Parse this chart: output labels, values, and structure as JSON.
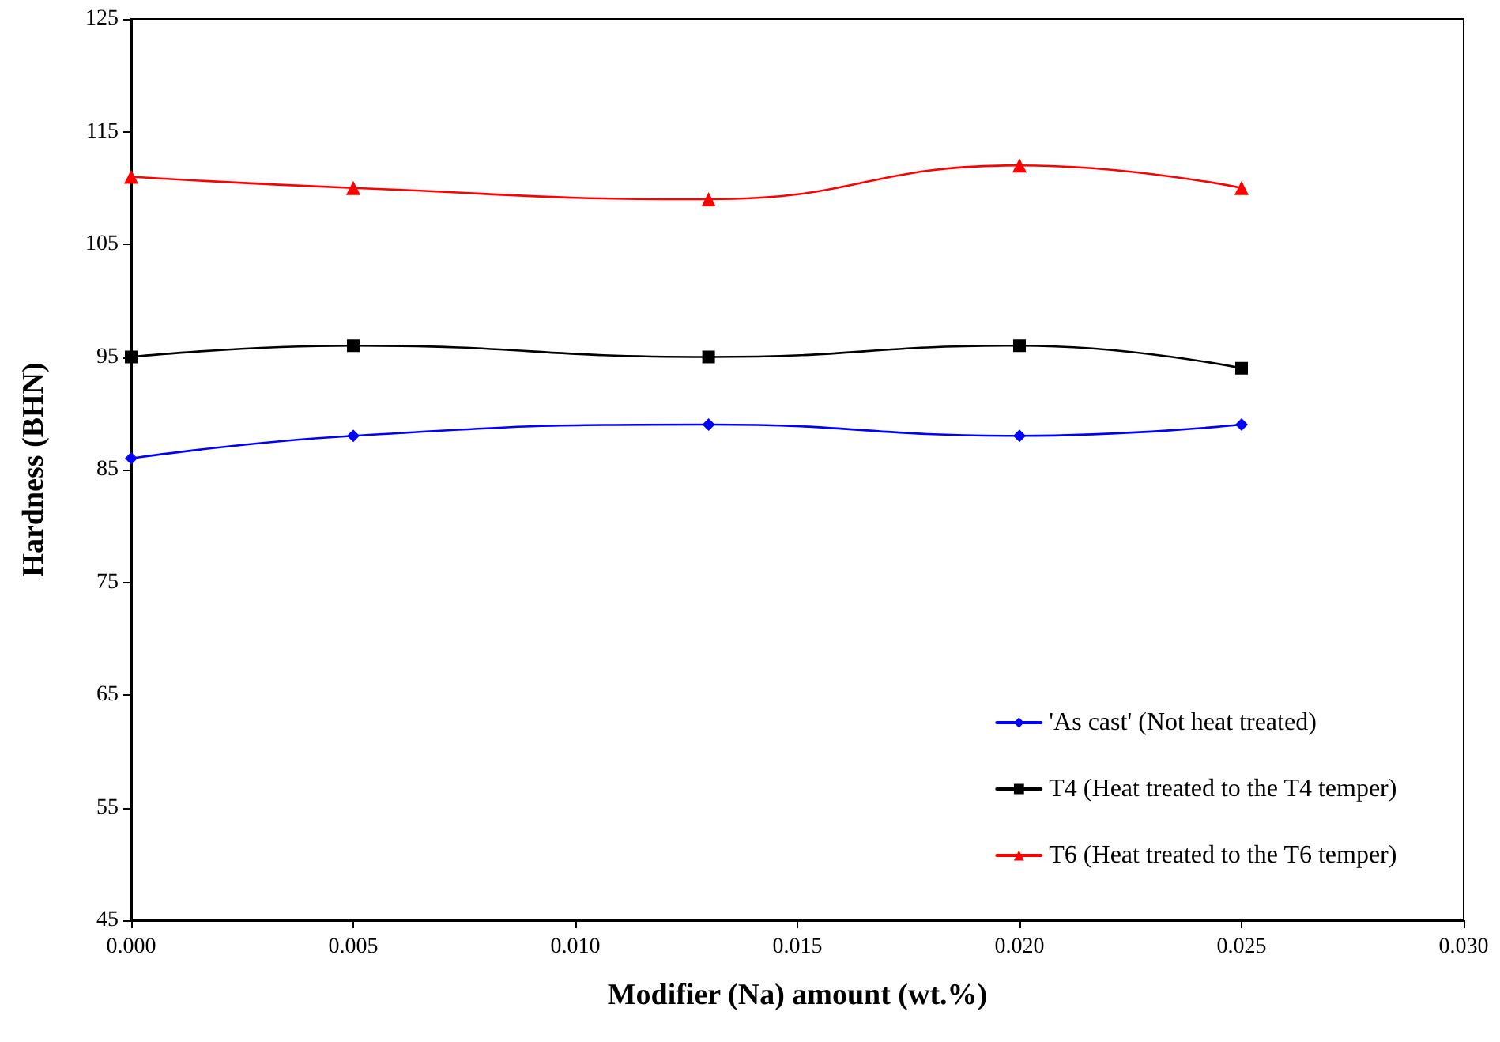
{
  "chart_data": {
    "type": "line",
    "xlabel": "Modifier (Na) amount (wt.%)",
    "ylabel": "Hardness (BHN)",
    "x": [
      0,
      0.005,
      0.013,
      0.02,
      0.025
    ],
    "series": [
      {
        "name": "'As cast' (Not heat treated)",
        "color": "#0000ff",
        "marker": "diamond",
        "values": [
          86,
          88,
          89,
          88,
          89
        ]
      },
      {
        "name": "T4 (Heat treated to the T4 temper)",
        "color": "#000000",
        "marker": "square",
        "values": [
          95,
          96,
          95,
          96,
          94
        ]
      },
      {
        "name": "T6 (Heat treated to the T6 temper)",
        "color": "#ff0000",
        "marker": "triangle",
        "values": [
          111,
          110,
          109,
          112,
          110
        ]
      }
    ],
    "xlim": [
      0,
      0.03
    ],
    "xticks": [
      {
        "value": 0,
        "label": "0.000"
      },
      {
        "value": 0.005,
        "label": "0.005"
      },
      {
        "value": 0.01,
        "label": "0.010"
      },
      {
        "value": 0.015,
        "label": "0.015"
      },
      {
        "value": 0.02,
        "label": "0.020"
      },
      {
        "value": 0.025,
        "label": "0.025"
      },
      {
        "value": 0.03,
        "label": "0.030"
      }
    ],
    "ylim": [
      45,
      125
    ],
    "yticks": [
      45,
      55,
      65,
      75,
      85,
      95,
      105,
      115,
      125
    ],
    "grid": false,
    "legend": "bottom right",
    "line_style": "solid"
  }
}
